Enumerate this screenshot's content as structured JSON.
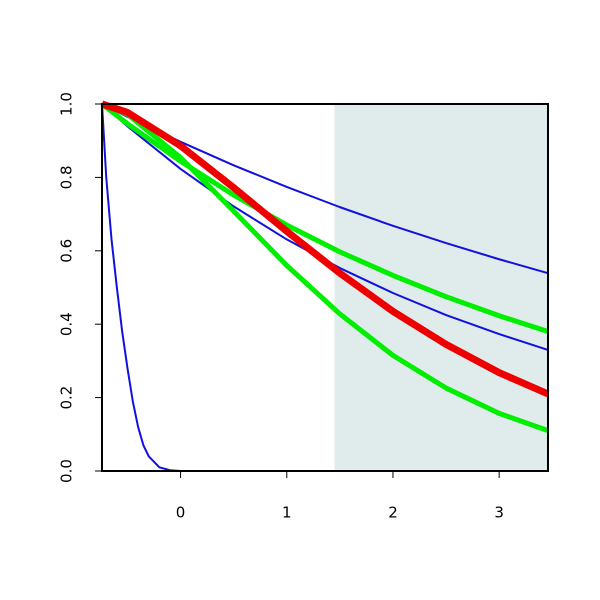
{
  "chart_data": {
    "type": "line",
    "xlim": [
      -0.74,
      3.46
    ],
    "ylim": [
      0,
      1
    ],
    "xticks": [
      0,
      1,
      2,
      3
    ],
    "yticks": [
      {
        "value": 0,
        "label": "0.0"
      },
      0.2,
      0.4,
      0.6,
      0.8,
      {
        "value": 1,
        "label": "1.0"
      }
    ],
    "shaded_region": {
      "xmin": 1.45,
      "xmax": 3.46,
      "color": "#dfeceb"
    },
    "series": [
      {
        "color": "#1111dd",
        "width": 2,
        "x": [
          -0.74,
          -0.7,
          -0.65,
          -0.6,
          -0.55,
          -0.5,
          -0.45,
          -0.4,
          -0.35,
          -0.3,
          -0.2,
          -0.1,
          0,
          3.46
        ],
        "values": [
          1,
          0.8,
          0.63,
          0.5,
          0.38,
          0.28,
          0.19,
          0.12,
          0.07,
          0.04,
          0.01,
          0.002,
          0,
          0
        ]
      },
      {
        "color": "#1111dd",
        "width": 2,
        "x": [
          -0.74,
          -0.5,
          0,
          0.5,
          1,
          1.5,
          2,
          2.5,
          3,
          3.46
        ],
        "values": [
          1,
          0.965,
          0.897,
          0.833,
          0.774,
          0.719,
          0.668,
          0.621,
          0.577,
          0.539
        ]
      },
      {
        "color": "#1111dd",
        "width": 2,
        "x": [
          -0.74,
          -0.5,
          0,
          0.5,
          1,
          1.5,
          2,
          2.5,
          3,
          3.46
        ],
        "values": [
          1,
          0.939,
          0.823,
          0.721,
          0.631,
          0.553,
          0.485,
          0.425,
          0.373,
          0.33
        ]
      },
      {
        "color": "#00ee00",
        "width": 5,
        "x": [
          -0.74,
          -0.5,
          0,
          0.5,
          1,
          1.5,
          2,
          2.5,
          3,
          3.46
        ],
        "values": [
          1,
          0.946,
          0.844,
          0.752,
          0.67,
          0.597,
          0.533,
          0.475,
          0.423,
          0.38
        ]
      },
      {
        "color": "#00ee00",
        "width": 5,
        "x": [
          -0.74,
          -0.5,
          0,
          0.5,
          1,
          1.5,
          2,
          2.5,
          3,
          3.46
        ],
        "values": [
          1,
          0.972,
          0.854,
          0.708,
          0.56,
          0.428,
          0.315,
          0.226,
          0.157,
          0.11
        ]
      },
      {
        "color": "#ee0000",
        "width": 7,
        "x": [
          -0.74,
          -0.5,
          0,
          0.5,
          1,
          1.5,
          2,
          2.5,
          3,
          3.46
        ],
        "values": [
          1,
          0.977,
          0.886,
          0.772,
          0.653,
          0.539,
          0.435,
          0.345,
          0.268,
          0.21
        ]
      }
    ]
  }
}
